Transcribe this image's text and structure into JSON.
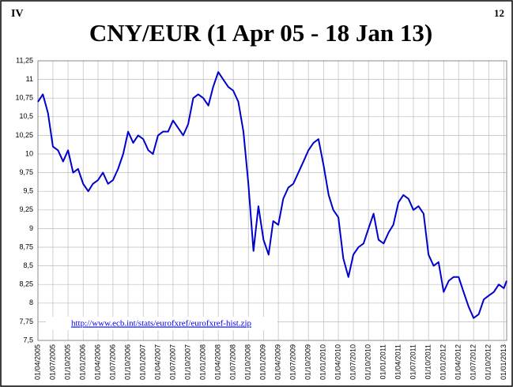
{
  "slide": {
    "section": "IV",
    "number": "12"
  },
  "chart_data": {
    "type": "line",
    "title": "CNY/EUR (1 Apr 05 - 18 Jan 13)",
    "source": "http://www.ecb.int/stats/eurofxref/eurofxref-hist.zip",
    "x": [
      "01/04/2005",
      "01/05/2005",
      "01/06/2005",
      "01/07/2005",
      "01/08/2005",
      "01/09/2005",
      "01/10/2005",
      "01/11/2005",
      "01/12/2005",
      "01/01/2006",
      "01/02/2006",
      "01/03/2006",
      "01/04/2006",
      "01/05/2006",
      "01/06/2006",
      "01/07/2006",
      "01/08/2006",
      "01/09/2006",
      "01/10/2006",
      "01/11/2006",
      "01/12/2006",
      "01/01/2007",
      "01/02/2007",
      "01/03/2007",
      "01/04/2007",
      "01/05/2007",
      "01/06/2007",
      "01/07/2007",
      "01/08/2007",
      "01/09/2007",
      "01/10/2007",
      "01/11/2007",
      "01/12/2007",
      "01/01/2008",
      "01/02/2008",
      "01/03/2008",
      "01/04/2008",
      "01/05/2008",
      "01/06/2008",
      "01/07/2008",
      "01/08/2008",
      "01/09/2008",
      "01/10/2008",
      "01/11/2008",
      "01/12/2008",
      "01/01/2009",
      "01/02/2009",
      "01/03/2009",
      "01/04/2009",
      "01/05/2009",
      "01/06/2009",
      "01/07/2009",
      "01/08/2009",
      "01/09/2009",
      "01/10/2009",
      "01/11/2009",
      "01/12/2009",
      "01/01/2010",
      "01/02/2010",
      "01/03/2010",
      "01/04/2010",
      "01/05/2010",
      "01/06/2010",
      "01/07/2010",
      "01/08/2010",
      "01/09/2010",
      "01/10/2010",
      "01/11/2010",
      "01/12/2010",
      "01/01/2011",
      "01/02/2011",
      "01/03/2011",
      "01/04/2011",
      "01/05/2011",
      "01/06/2011",
      "01/07/2011",
      "01/08/2011",
      "01/09/2011",
      "01/10/2011",
      "01/11/2011",
      "01/12/2011",
      "01/01/2012",
      "01/02/2012",
      "01/03/2012",
      "01/04/2012",
      "01/05/2012",
      "01/06/2012",
      "01/07/2012",
      "01/08/2012",
      "01/09/2012",
      "01/10/2012",
      "01/11/2012",
      "01/12/2012",
      "01/01/2013",
      "18/01/2013"
    ],
    "series": [
      {
        "name": "CNY/EUR",
        "color": "#0000cc",
        "values": [
          10.7,
          10.8,
          10.55,
          10.1,
          10.05,
          9.9,
          10.05,
          9.75,
          9.8,
          9.6,
          9.5,
          9.6,
          9.65,
          9.75,
          9.6,
          9.65,
          9.8,
          10.0,
          10.3,
          10.15,
          10.25,
          10.2,
          10.05,
          10.0,
          10.25,
          10.3,
          10.3,
          10.45,
          10.35,
          10.25,
          10.4,
          10.75,
          10.8,
          10.75,
          10.65,
          10.9,
          11.1,
          11.0,
          10.9,
          10.85,
          10.7,
          10.3,
          9.6,
          8.7,
          9.3,
          8.85,
          8.65,
          9.1,
          9.05,
          9.4,
          9.55,
          9.6,
          9.75,
          9.9,
          10.05,
          10.15,
          10.2,
          9.85,
          9.45,
          9.25,
          9.15,
          8.6,
          8.35,
          8.65,
          8.75,
          8.8,
          9.0,
          9.2,
          8.85,
          8.8,
          8.95,
          9.05,
          9.35,
          9.45,
          9.4,
          9.25,
          9.3,
          9.2,
          8.65,
          8.5,
          8.55,
          8.15,
          8.3,
          8.35,
          8.35,
          8.15,
          7.95,
          7.8,
          7.85,
          8.05,
          8.1,
          8.15,
          8.25,
          8.2,
          8.3
        ]
      }
    ],
    "xlim": [
      "01/04/2005",
      "18/01/2013"
    ],
    "xticks": [
      "01/04/2005",
      "01/07/2005",
      "01/10/2005",
      "01/01/2006",
      "01/04/2006",
      "01/07/2006",
      "01/10/2006",
      "01/01/2007",
      "01/04/2007",
      "01/07/2007",
      "01/10/2007",
      "01/01/2008",
      "01/04/2008",
      "01/07/2008",
      "01/10/2008",
      "01/01/2009",
      "01/04/2009",
      "01/07/2009",
      "01/10/2009",
      "01/01/2010",
      "01/04/2010",
      "01/07/2010",
      "01/10/2010",
      "01/01/2011",
      "01/04/2011",
      "01/07/2011",
      "01/10/2011",
      "01/01/2012",
      "01/04/2012",
      "01/07/2012",
      "01/10/2012",
      "01/01/2013"
    ],
    "ylim": [
      7.5,
      11.25
    ],
    "yticks": [
      {
        "value": 7.5,
        "label": "7,5"
      },
      {
        "value": 7.75,
        "label": "7,75"
      },
      {
        "value": 8,
        "label": "8"
      },
      {
        "value": 8.25,
        "label": "8,25"
      },
      {
        "value": 8.5,
        "label": "8,5"
      },
      {
        "value": 8.75,
        "label": "8,75"
      },
      {
        "value": 9,
        "label": "9"
      },
      {
        "value": 9.25,
        "label": "9,25"
      },
      {
        "value": 9.5,
        "label": "9,5"
      },
      {
        "value": 9.75,
        "label": "9,75"
      },
      {
        "value": 10,
        "label": "10"
      },
      {
        "value": 10.25,
        "label": "10,25"
      },
      {
        "value": 10.5,
        "label": "10,5"
      },
      {
        "value": 10.75,
        "label": "10,75"
      },
      {
        "value": 11,
        "label": "11"
      },
      {
        "value": 11.25,
        "label": "11,25"
      }
    ],
    "grid": true
  }
}
